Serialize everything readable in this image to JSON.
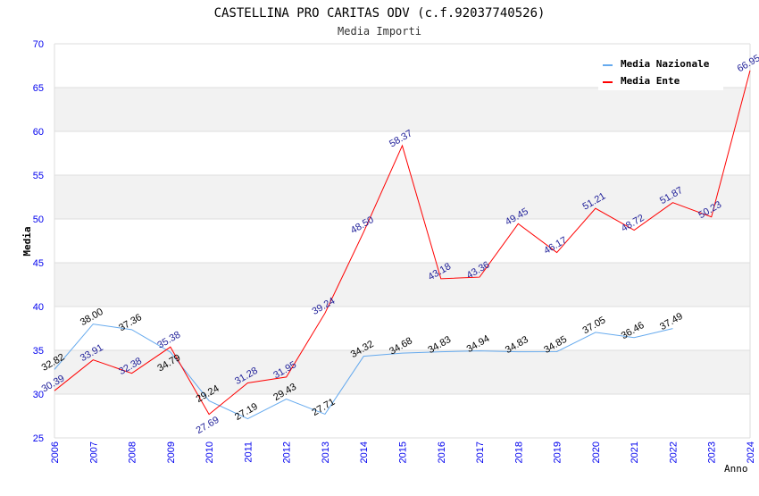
{
  "chart_data": {
    "type": "line",
    "title": "CASTELLINA PRO CARITAS ODV (c.f.92037740526)",
    "subtitle": "Media Importi",
    "xlabel": "Anno",
    "ylabel": "Media",
    "ylim": [
      25,
      70
    ],
    "yticks": [
      "25",
      "30",
      "35",
      "40",
      "45",
      "50",
      "55",
      "60",
      "65",
      "70"
    ],
    "x": [
      "2006",
      "2007",
      "2008",
      "2009",
      "2010",
      "2011",
      "2012",
      "2013",
      "2014",
      "2015",
      "2016",
      "2017",
      "2018",
      "2019",
      "2020",
      "2021",
      "2022",
      "2023",
      "2024"
    ],
    "grid": true,
    "legend_position": "top-right",
    "series": [
      {
        "name": "Media Nazionale",
        "color": "#66aaee",
        "label_color": "#000000",
        "values": [
          32.82,
          38.0,
          37.36,
          34.79,
          29.24,
          27.19,
          29.43,
          27.71,
          34.32,
          34.68,
          34.83,
          34.94,
          34.83,
          34.85,
          37.05,
          36.46,
          37.49,
          null,
          null
        ],
        "labels": [
          "32.82",
          "38.00",
          "37.36",
          "34.79",
          "29.24",
          "27.19",
          "29.43",
          "27.71",
          "34.32",
          "34.68",
          "34.83",
          "34.94",
          "34.83",
          "34.85",
          "37.05",
          "36.46",
          "37.49",
          null,
          null
        ]
      },
      {
        "name": "Media Ente",
        "color": "#ff0000",
        "label_color": "#22229a",
        "values": [
          30.39,
          33.91,
          32.38,
          35.38,
          27.69,
          31.28,
          31.95,
          39.24,
          48.5,
          58.37,
          43.18,
          43.36,
          49.45,
          46.17,
          51.21,
          48.72,
          51.87,
          50.23,
          66.95
        ],
        "labels": [
          "30.39",
          "33.91",
          "32.38",
          "35.38",
          "27.69",
          "31.28",
          "31.95",
          "39.24",
          "48.50",
          "58.37",
          "43.18",
          "43.36",
          "49.45",
          "46.17",
          "51.21",
          "48.72",
          "51.87",
          "50.23",
          "66.95"
        ]
      }
    ]
  }
}
